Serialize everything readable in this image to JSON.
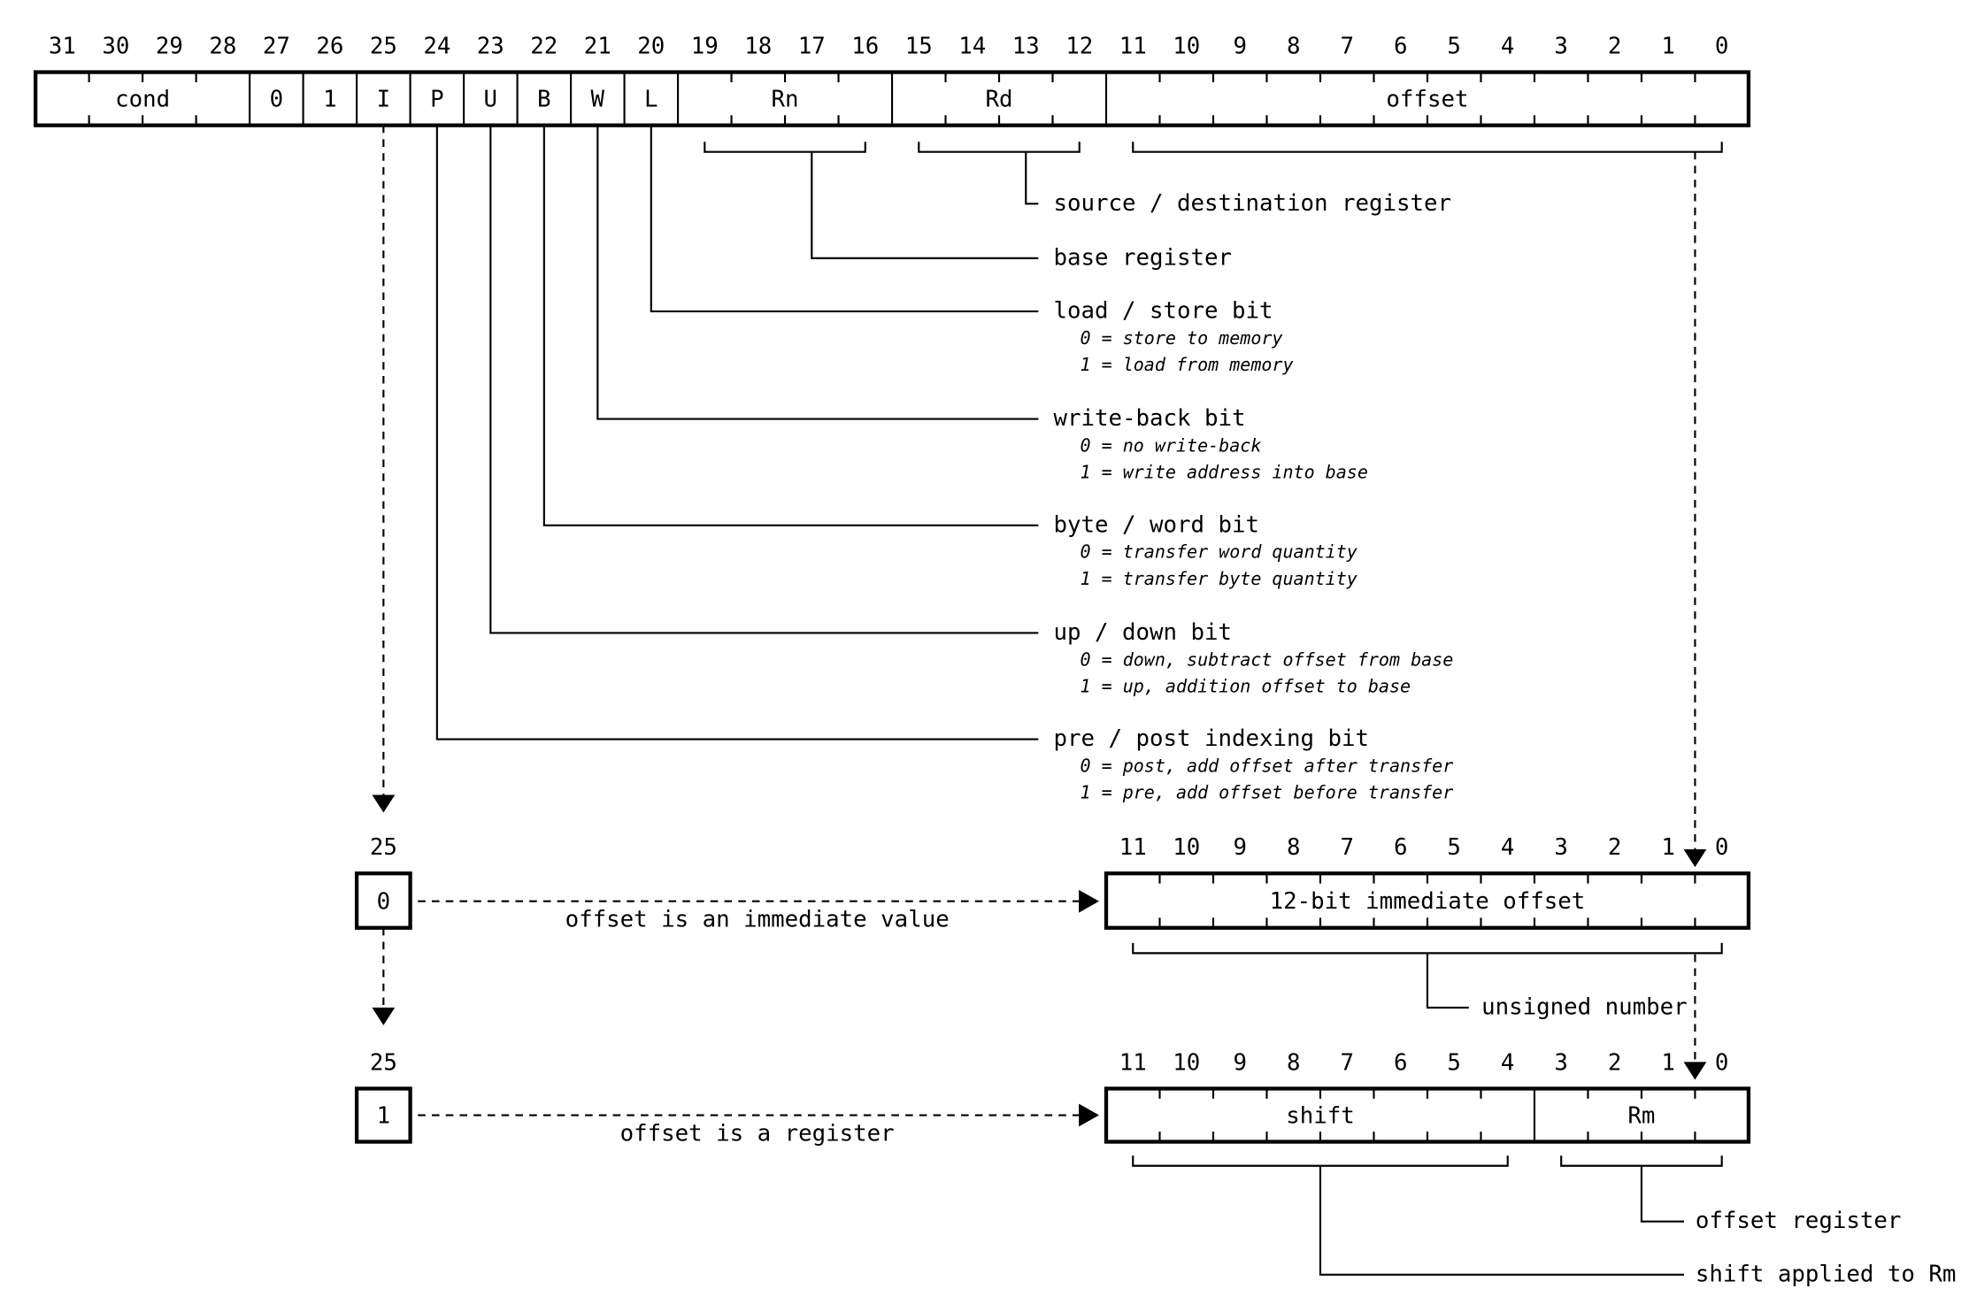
{
  "top": {
    "bits": [
      31,
      30,
      29,
      28,
      27,
      26,
      25,
      24,
      23,
      22,
      21,
      20,
      19,
      18,
      17,
      16,
      15,
      14,
      13,
      12,
      11,
      10,
      9,
      8,
      7,
      6,
      5,
      4,
      3,
      2,
      1,
      0
    ],
    "fields": [
      "cond",
      "0",
      "1",
      "I",
      "P",
      "U",
      "B",
      "W",
      "L",
      "Rn",
      "Rd",
      "offset"
    ]
  },
  "annotations": [
    {
      "title": "source / destination register"
    },
    {
      "title": "base register"
    },
    {
      "title": "load / store bit",
      "lines": [
        "0 = store to memory",
        "1 = load from memory"
      ]
    },
    {
      "title": "write-back bit",
      "lines": [
        "0 = no write-back",
        "1 = write address into base"
      ]
    },
    {
      "title": "byte / word bit",
      "lines": [
        "0 = transfer word quantity",
        "1 = transfer byte quantity"
      ]
    },
    {
      "title": "up / down bit",
      "lines": [
        "0 = down, subtract offset from base",
        "1 = up, addition offset to base"
      ]
    },
    {
      "title": "pre / post indexing bit",
      "lines": [
        "0 = post, add offset after transfer",
        "1 = pre, add offset before transfer"
      ]
    }
  ],
  "immediate": {
    "bit": 25,
    "bit_value": "0",
    "caption": "offset is an immediate value",
    "bits": [
      11,
      10,
      9,
      8,
      7,
      6,
      5,
      4,
      3,
      2,
      1,
      0
    ],
    "field": "12-bit immediate offset",
    "note": "unsigned number"
  },
  "register": {
    "bit": 25,
    "bit_value": "1",
    "caption": "offset is a register",
    "bits": [
      11,
      10,
      9,
      8,
      7,
      6,
      5,
      4,
      3,
      2,
      1,
      0
    ],
    "fields": [
      "shift",
      "Rm"
    ],
    "notes": [
      "offset register",
      "shift applied to Rm"
    ]
  }
}
